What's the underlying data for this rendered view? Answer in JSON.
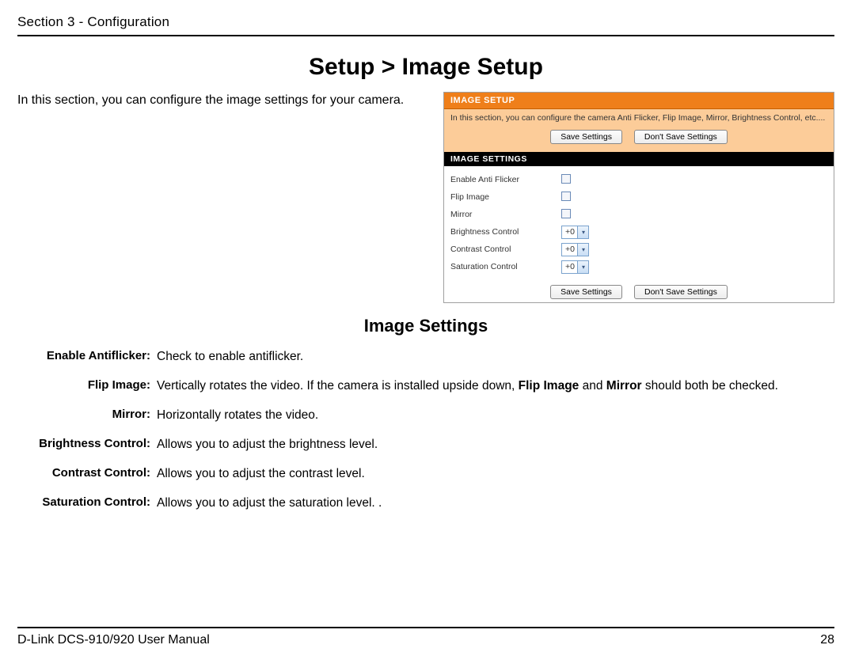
{
  "header": {
    "section": "Section 3 - Configuration"
  },
  "title": "Setup > Image Setup",
  "intro": "In this section, you can configure the image settings for your camera.",
  "screenshot": {
    "panel_title": "IMAGE SETUP",
    "panel_text": "In this section, you can configure the camera Anti Flicker, Flip Image, Mirror, Brightness Control, etc....",
    "save_label": "Save Settings",
    "dont_save_label": "Don't Save Settings",
    "settings_title": "IMAGE SETTINGS",
    "rows": [
      {
        "label": "Enable Anti Flicker",
        "type": "checkbox"
      },
      {
        "label": "Flip Image",
        "type": "checkbox"
      },
      {
        "label": "Mirror",
        "type": "checkbox"
      },
      {
        "label": "Brightness Control",
        "type": "select",
        "value": "+0"
      },
      {
        "label": "Contrast Control",
        "type": "select",
        "value": "+0"
      },
      {
        "label": "Saturation Control",
        "type": "select",
        "value": "+0"
      }
    ]
  },
  "subsection_title": "Image Settings",
  "definitions": [
    {
      "label": "Enable Antiflicker:",
      "desc": "Check to enable antiflicker."
    },
    {
      "label": "Flip Image:",
      "desc": "Vertically rotates the video. If the camera is installed upside down, <b>Flip Image</b> and <b>Mirror</b> should both be checked."
    },
    {
      "label": "Mirror:",
      "desc": "Horizontally rotates the video."
    },
    {
      "label": "Brightness Control:",
      "desc": "Allows you to adjust the brightness level."
    },
    {
      "label": "Contrast Control:",
      "desc": "Allows you to adjust the contrast level."
    },
    {
      "label": "Saturation Control:",
      "desc": "Allows you to adjust the saturation level. ."
    }
  ],
  "footer": {
    "left": "D-Link DCS-910/920 User Manual",
    "page": "28"
  },
  "colors": {
    "orange_header": "#ef7f1a",
    "orange_body": "#fccc99",
    "black_bar": "#000000",
    "border": "#a0a0a0"
  }
}
